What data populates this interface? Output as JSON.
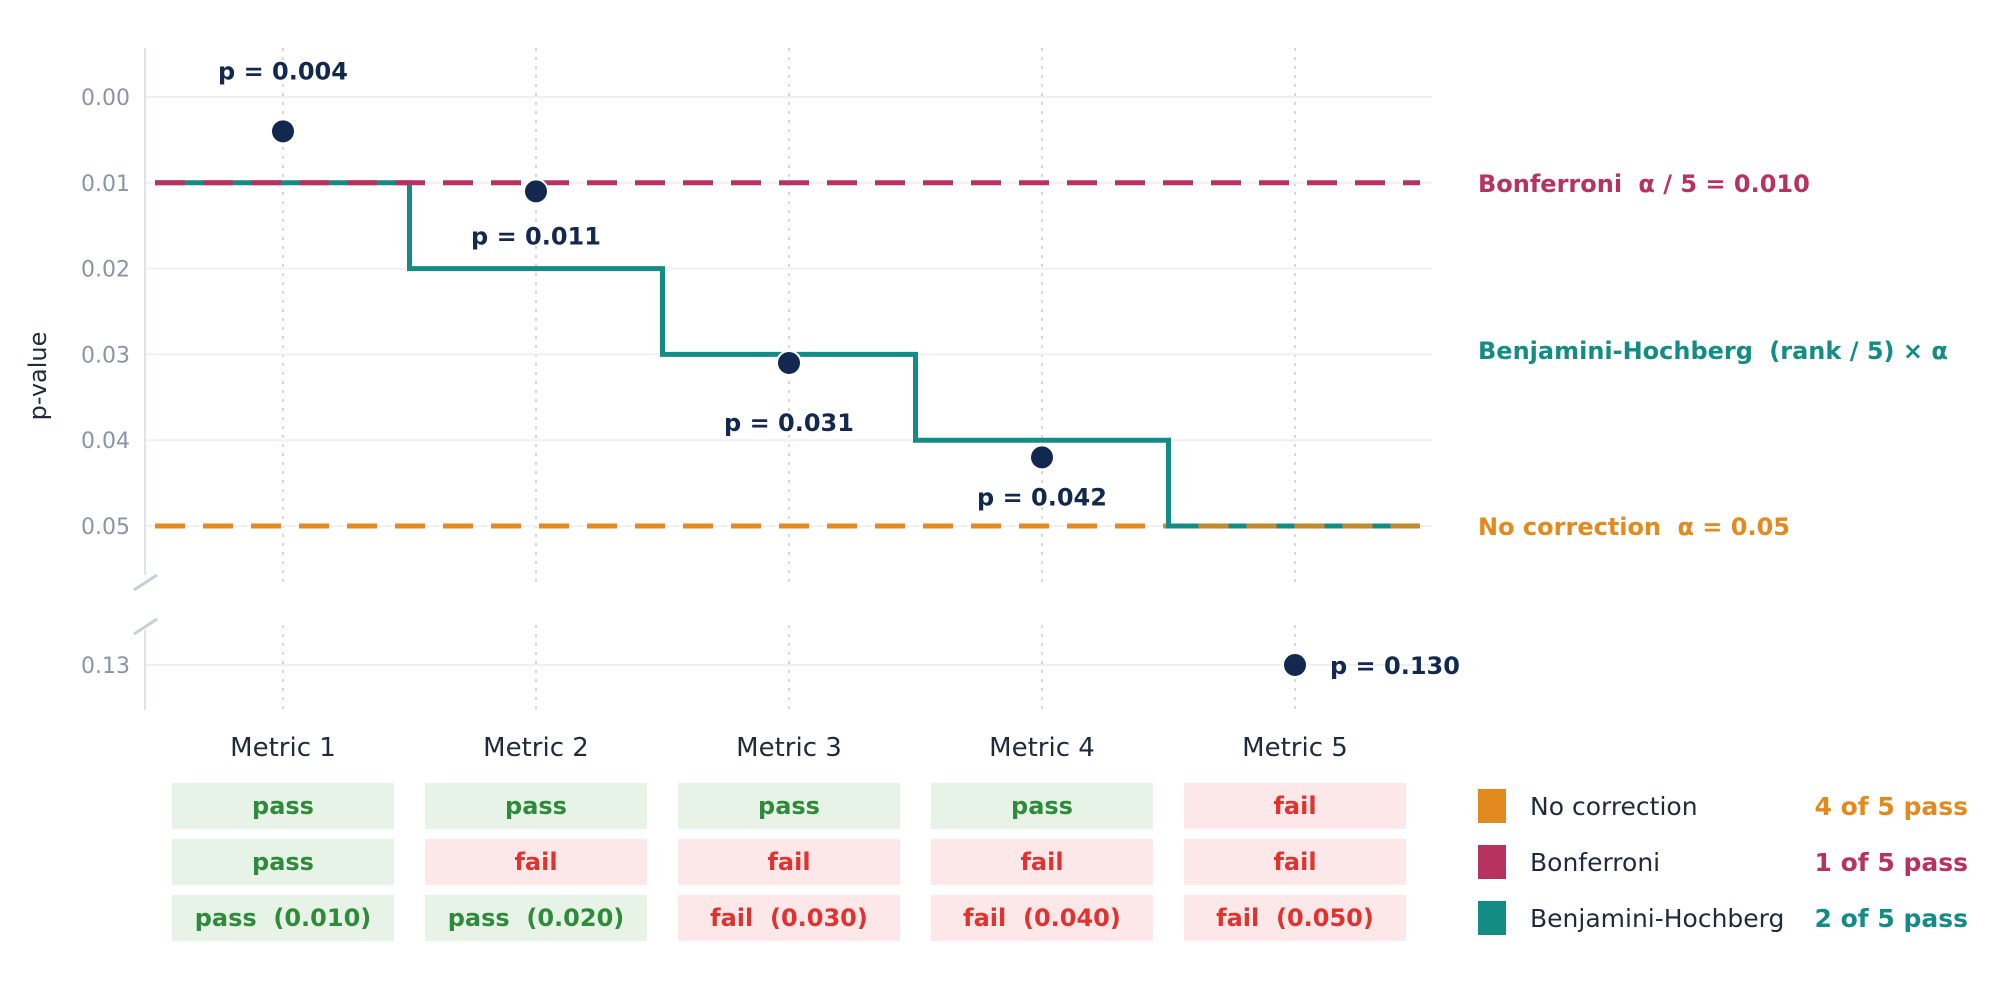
{
  "chart_data": {
    "type": "scatter",
    "ylabel": "p-value",
    "y_axis": {
      "ticks": [
        "0.00",
        "0.01",
        "0.02",
        "0.03",
        "0.04",
        "0.05"
      ],
      "ticks_lower": [
        "0.13"
      ],
      "range_upper": [
        0.0,
        0.05
      ],
      "range_lower": [
        0.13,
        0.13
      ],
      "inverted": true,
      "axis_break": true
    },
    "grid": true,
    "categories": [
      "Metric 1",
      "Metric 2",
      "Metric 3",
      "Metric 4",
      "Metric 5"
    ],
    "series": [
      {
        "values": [
          0.004,
          0.011,
          0.031,
          0.042,
          0.13
        ],
        "labels": [
          "p = 0.004",
          "p = 0.011",
          "p = 0.031",
          "p = 0.042",
          "p = 0.130"
        ],
        "color": "#13284f"
      }
    ],
    "thresholds": [
      {
        "key": "bonferroni",
        "name": "Bonferroni",
        "formula": "α / 5 = 0.010",
        "value": 0.01,
        "color": "#b8325f",
        "style": "dashed"
      },
      {
        "key": "bh",
        "name": "Benjamini-Hochberg",
        "formula": "(rank / 5) × α",
        "values": [
          0.01,
          0.02,
          0.03,
          0.04,
          0.05
        ],
        "color": "#148c86",
        "style": "step"
      },
      {
        "key": "none",
        "name": "No correction",
        "formula": "α = 0.05",
        "value": 0.05,
        "color": "#e28a1d",
        "style": "dashed"
      }
    ],
    "results_table": [
      [
        "pass",
        "pass",
        "pass",
        "pass",
        "fail"
      ],
      [
        "pass",
        "fail",
        "fail",
        "fail",
        "fail"
      ],
      [
        "pass  (0.010)",
        "pass  (0.020)",
        "fail  (0.030)",
        "fail  (0.040)",
        "fail  (0.050)"
      ]
    ],
    "legend": {
      "placement": "bottom-right",
      "items": [
        {
          "name": "No correction",
          "summary": "4 of 5 pass",
          "color": "#e28a1d"
        },
        {
          "name": "Bonferroni",
          "summary": "1 of 5 pass",
          "color": "#b8325f"
        },
        {
          "name": "Benjamini-Hochberg",
          "summary": "2 of 5 pass",
          "color": "#148c86"
        }
      ]
    },
    "colors": {
      "pass_text": "#2e8b3a",
      "pass_bg": "#e8f3e8",
      "fail_text": "#e0322f",
      "fail_bg": "#fce8e8",
      "axis_text": "#8a94a6",
      "grid": "#eef0f4"
    }
  }
}
